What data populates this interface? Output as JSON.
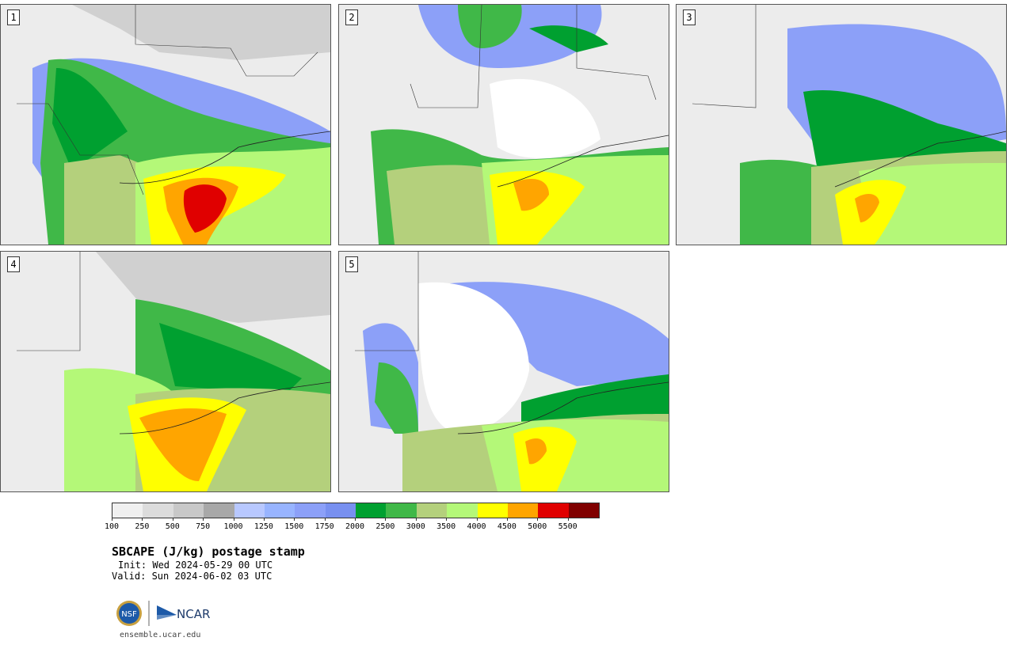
{
  "panels": [
    {
      "number": "1"
    },
    {
      "number": "2"
    },
    {
      "number": "3"
    },
    {
      "number": "4"
    },
    {
      "number": "5"
    }
  ],
  "colorbar": {
    "colors": [
      "#f0f0f0",
      "#dcdcdc",
      "#c8c8c8",
      "#a8a8a8",
      "#b8c8ff",
      "#98b4ff",
      "#8ca0f8",
      "#7890f0",
      "#00a030",
      "#40b848",
      "#b4d07c",
      "#b4f878",
      "#ffff00",
      "#ffa500",
      "#e00000",
      "#800000"
    ],
    "tick_labels": [
      "100",
      "250",
      "500",
      "750",
      "1000",
      "1250",
      "1500",
      "1750",
      "2000",
      "2500",
      "3000",
      "3500",
      "4000",
      "4500",
      "5000",
      "5500"
    ]
  },
  "header": {
    "title": "SBCAPE (J/kg) postage stamp",
    "init": "Init: Wed 2024-05-29 00 UTC",
    "valid": "Valid: Sun 2024-06-02 03 UTC"
  },
  "logos": {
    "nsf_text": "NSF",
    "ncar_text": "NCAR"
  },
  "footer": {
    "site": "ensemble.ucar.edu"
  }
}
